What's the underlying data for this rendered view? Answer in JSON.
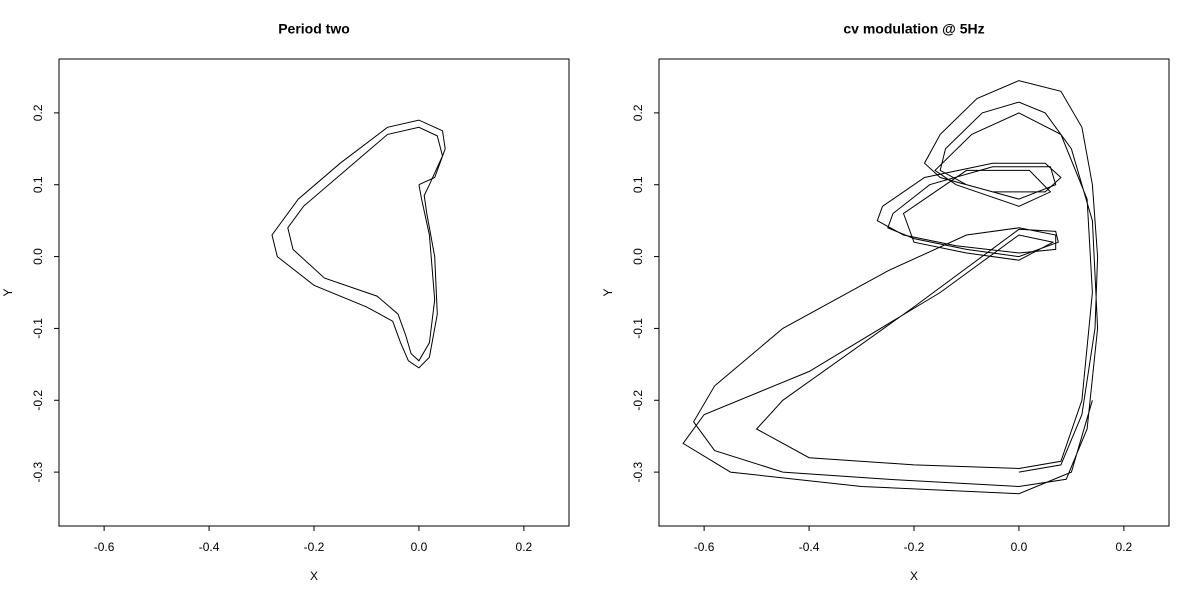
{
  "chart_data": [
    {
      "type": "line",
      "title": "Period two",
      "xlabel": "X",
      "ylabel": "Y",
      "xlim": [
        -0.686,
        0.286
      ],
      "ylim": [
        -0.375,
        0.275
      ],
      "xticks": [
        -0.6,
        -0.4,
        -0.2,
        {
          "value": 0,
          "label": "0.0"
        },
        0.2
      ],
      "yticks": [
        -0.3,
        -0.2,
        -0.1,
        {
          "value": 0,
          "label": "0.0"
        },
        0.1,
        0.2
      ],
      "series": [
        {
          "color": "#000000",
          "x": [
            0.0,
            0.03,
            0.05,
            0.045,
            0.0,
            -0.06,
            -0.15,
            -0.23,
            -0.28,
            -0.27,
            -0.2,
            -0.1,
            -0.05,
            -0.035,
            -0.02,
            0.0,
            0.02,
            0.035,
            0.03,
            0.015,
            0.01,
            0.02,
            0.045,
            0.035,
            0.0,
            -0.06,
            -0.14,
            -0.22,
            -0.25,
            -0.24,
            -0.18,
            -0.08,
            -0.04,
            -0.025,
            -0.015,
            0.0,
            0.02,
            0.03,
            0.02,
            0.005,
            0.0
          ],
          "y": [
            0.1,
            0.11,
            0.15,
            0.175,
            0.19,
            0.18,
            0.13,
            0.08,
            0.03,
            0.0,
            -0.04,
            -0.07,
            -0.09,
            -0.12,
            -0.145,
            -0.155,
            -0.14,
            -0.08,
            0.0,
            0.06,
            0.085,
            0.1,
            0.14,
            0.168,
            0.18,
            0.17,
            0.12,
            0.07,
            0.04,
            0.01,
            -0.03,
            -0.055,
            -0.08,
            -0.11,
            -0.135,
            -0.145,
            -0.12,
            -0.06,
            0.03,
            0.08,
            0.1
          ]
        }
      ]
    },
    {
      "type": "line",
      "title": "cv modulation @ 5Hz",
      "xlabel": "X",
      "ylabel": "Y",
      "xlim": [
        -0.686,
        0.286
      ],
      "ylim": [
        -0.375,
        0.275
      ],
      "xticks": [
        -0.6,
        -0.4,
        -0.2,
        {
          "value": 0,
          "label": "0.0"
        },
        0.2
      ],
      "yticks": [
        -0.3,
        -0.2,
        -0.1,
        {
          "value": 0,
          "label": "0.0"
        },
        0.1,
        0.2
      ],
      "series": [
        {
          "color": "#000000",
          "x": [
            0.0,
            0.08,
            0.12,
            0.145,
            0.15,
            0.14,
            0.12,
            0.08,
            0.0,
            -0.08,
            -0.15,
            -0.18,
            -0.15,
            -0.05,
            0.05,
            0.08,
            0.05,
            -0.05,
            -0.18,
            -0.26,
            -0.27,
            -0.22,
            -0.12,
            0.0,
            0.07,
            0.07,
            0.0,
            -0.1,
            -0.25,
            -0.45,
            -0.58,
            -0.62,
            -0.58,
            -0.45,
            -0.25,
            0.0,
            0.09,
            0.13,
            0.15,
            0.14,
            0.1,
            0.05,
            0.0,
            -0.07,
            -0.14,
            -0.15,
            -0.1,
            0.0,
            0.07,
            0.06,
            -0.05,
            -0.17,
            -0.24,
            -0.25,
            -0.2,
            -0.1,
            0.0,
            0.075,
            0.07,
            0.0,
            -0.2,
            -0.45,
            -0.5,
            -0.4,
            -0.2,
            0.0,
            0.08,
            0.12,
            0.14,
            0.13,
            0.08,
            0.0,
            -0.09,
            -0.16,
            -0.12,
            0.0,
            0.06,
            0.02,
            -0.1,
            -0.22,
            -0.2,
            -0.1,
            0.0,
            0.065,
            0.0,
            -0.15,
            -0.4,
            -0.6,
            -0.64,
            -0.55,
            -0.3,
            0.0,
            0.1,
            0.14
          ],
          "y": [
            -0.3,
            -0.29,
            -0.22,
            -0.1,
            0.0,
            0.1,
            0.18,
            0.23,
            0.245,
            0.22,
            0.17,
            0.13,
            0.11,
            0.09,
            0.09,
            0.11,
            0.13,
            0.13,
            0.11,
            0.07,
            0.05,
            0.03,
            0.015,
            0.005,
            0.01,
            0.03,
            0.04,
            0.03,
            -0.02,
            -0.1,
            -0.18,
            -0.23,
            -0.27,
            -0.3,
            -0.31,
            -0.32,
            -0.31,
            -0.24,
            -0.1,
            0.05,
            0.15,
            0.2,
            0.215,
            0.2,
            0.15,
            0.12,
            0.1,
            0.08,
            0.1,
            0.125,
            0.125,
            0.1,
            0.06,
            0.04,
            0.025,
            0.01,
            0.0,
            0.02,
            0.035,
            0.038,
            -0.07,
            -0.2,
            -0.24,
            -0.28,
            -0.29,
            -0.295,
            -0.285,
            -0.2,
            -0.05,
            0.08,
            0.17,
            0.2,
            0.17,
            0.12,
            0.1,
            0.07,
            0.09,
            0.12,
            0.12,
            0.06,
            0.02,
            0.005,
            -0.005,
            0.02,
            0.03,
            -0.05,
            -0.16,
            -0.22,
            -0.26,
            -0.3,
            -0.32,
            -0.33,
            -0.3,
            -0.2
          ]
        }
      ]
    }
  ]
}
